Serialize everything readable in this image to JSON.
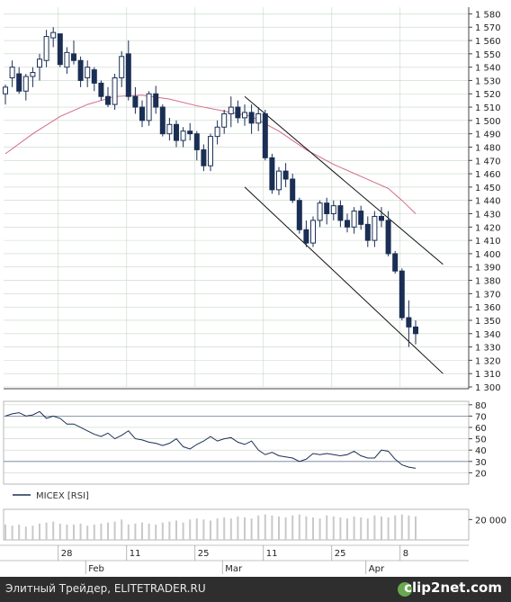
{
  "colors": {
    "candle": "#1b2f55",
    "ma": "#d46a8a",
    "grid": "#c5d6c5",
    "rsi": "#1b2f55",
    "volume": "#c9c9c9",
    "footer_bg": "#2e2e2e"
  },
  "footer": {
    "text": "Элитный Трейдер, ELITETRADER.RU",
    "brand": "clip2net.com"
  },
  "chart_data": [
    {
      "type": "candlestick",
      "title": "",
      "ylim": [
        1300,
        1585
      ],
      "y_ticks": [
        "1 580",
        "1 570",
        "1 560",
        "1 550",
        "1 540",
        "1 530",
        "1 520",
        "1 510",
        "1 500",
        "1 490",
        "1 480",
        "1 470",
        "1 460",
        "1 450",
        "1 440",
        "1 430",
        "1 420",
        "1 410",
        "1 400",
        "1 390",
        "1 380",
        "1 370",
        "1 360",
        "1 350",
        "1 340",
        "1 330",
        "1 320",
        "1 310",
        "1 300"
      ],
      "x_day_labels": [
        {
          "label": "28",
          "i": 8
        },
        {
          "label": "11",
          "i": 18
        },
        {
          "label": "25",
          "i": 28
        },
        {
          "label": "11",
          "i": 38
        },
        {
          "label": "25",
          "i": 48
        },
        {
          "label": "8",
          "i": 58
        }
      ],
      "x_month_labels": [
        {
          "label": "Feb",
          "i": 12
        },
        {
          "label": "Mar",
          "i": 32
        },
        {
          "label": "Apr",
          "i": 53
        }
      ],
      "ohlc": [
        [
          1520,
          1527,
          1512,
          1525
        ],
        [
          1532,
          1545,
          1525,
          1540
        ],
        [
          1535,
          1540,
          1520,
          1522
        ],
        [
          1522,
          1535,
          1515,
          1533
        ],
        [
          1533,
          1540,
          1525,
          1536
        ],
        [
          1540,
          1550,
          1530,
          1546
        ],
        [
          1545,
          1568,
          1540,
          1563
        ],
        [
          1562,
          1570,
          1555,
          1566
        ],
        [
          1565,
          1565,
          1540,
          1542
        ],
        [
          1540,
          1555,
          1535,
          1551
        ],
        [
          1550,
          1560,
          1542,
          1545
        ],
        [
          1545,
          1548,
          1525,
          1530
        ],
        [
          1532,
          1545,
          1525,
          1540
        ],
        [
          1538,
          1540,
          1522,
          1528
        ],
        [
          1528,
          1530,
          1515,
          1518
        ],
        [
          1518,
          1525,
          1510,
          1512
        ],
        [
          1512,
          1535,
          1508,
          1532
        ],
        [
          1532,
          1552,
          1525,
          1548
        ],
        [
          1550,
          1560,
          1515,
          1518
        ],
        [
          1518,
          1525,
          1505,
          1510
        ],
        [
          1510,
          1515,
          1495,
          1500
        ],
        [
          1500,
          1522,
          1496,
          1520
        ],
        [
          1520,
          1526,
          1505,
          1510
        ],
        [
          1510,
          1512,
          1488,
          1490
        ],
        [
          1490,
          1502,
          1485,
          1497
        ],
        [
          1497,
          1500,
          1480,
          1485
        ],
        [
          1485,
          1495,
          1480,
          1492
        ],
        [
          1492,
          1498,
          1485,
          1490
        ],
        [
          1490,
          1492,
          1470,
          1478
        ],
        [
          1478,
          1482,
          1462,
          1466
        ],
        [
          1466,
          1490,
          1462,
          1488
        ],
        [
          1488,
          1500,
          1482,
          1495
        ],
        [
          1495,
          1508,
          1490,
          1505
        ],
        [
          1505,
          1518,
          1495,
          1510
        ],
        [
          1510,
          1515,
          1498,
          1502
        ],
        [
          1502,
          1512,
          1496,
          1506
        ],
        [
          1506,
          1512,
          1490,
          1498
        ],
        [
          1498,
          1510,
          1492,
          1505
        ],
        [
          1505,
          1508,
          1470,
          1472
        ],
        [
          1472,
          1475,
          1445,
          1448
        ],
        [
          1448,
          1465,
          1444,
          1462
        ],
        [
          1462,
          1468,
          1450,
          1456
        ],
        [
          1456,
          1460,
          1438,
          1440
        ],
        [
          1440,
          1442,
          1415,
          1418
        ],
        [
          1418,
          1425,
          1405,
          1408
        ],
        [
          1408,
          1428,
          1405,
          1425
        ],
        [
          1425,
          1440,
          1420,
          1438
        ],
        [
          1438,
          1442,
          1422,
          1430
        ],
        [
          1430,
          1440,
          1425,
          1436
        ],
        [
          1436,
          1440,
          1420,
          1425
        ],
        [
          1425,
          1430,
          1416,
          1420
        ],
        [
          1420,
          1435,
          1415,
          1432
        ],
        [
          1432,
          1436,
          1418,
          1422
        ],
        [
          1422,
          1428,
          1405,
          1410
        ],
        [
          1410,
          1432,
          1405,
          1428
        ],
        [
          1428,
          1435,
          1420,
          1425
        ],
        [
          1425,
          1432,
          1398,
          1400
        ],
        [
          1400,
          1402,
          1385,
          1387
        ],
        [
          1387,
          1389,
          1350,
          1352
        ],
        [
          1352,
          1365,
          1330,
          1345
        ],
        [
          1345,
          1350,
          1332,
          1340
        ]
      ],
      "ma_series": [
        {
          "i": 0,
          "v": 1475
        },
        {
          "i": 4,
          "v": 1490
        },
        {
          "i": 8,
          "v": 1503
        },
        {
          "i": 12,
          "v": 1512
        },
        {
          "i": 16,
          "v": 1518
        },
        {
          "i": 20,
          "v": 1519
        },
        {
          "i": 24,
          "v": 1516
        },
        {
          "i": 28,
          "v": 1511
        },
        {
          "i": 32,
          "v": 1507
        },
        {
          "i": 36,
          "v": 1503
        },
        {
          "i": 40,
          "v": 1492
        },
        {
          "i": 44,
          "v": 1478
        },
        {
          "i": 48,
          "v": 1467
        },
        {
          "i": 52,
          "v": 1458
        },
        {
          "i": 56,
          "v": 1449
        },
        {
          "i": 58,
          "v": 1440
        },
        {
          "i": 60,
          "v": 1430
        }
      ],
      "trend_lines": [
        {
          "from": {
            "i": 35,
            "v": 1518
          },
          "to": {
            "i": 64,
            "v": 1392
          }
        },
        {
          "from": {
            "i": 35,
            "v": 1450
          },
          "to": {
            "i": 64,
            "v": 1310
          }
        }
      ]
    },
    {
      "type": "line",
      "series": [
        {
          "name": "MICEX [RSI]",
          "values": [
            70,
            72,
            73,
            70,
            71,
            74,
            68,
            70,
            68,
            63,
            63,
            60,
            57,
            54,
            52,
            55,
            50,
            53,
            57,
            50,
            49,
            47,
            46,
            44,
            46,
            50,
            43,
            41,
            45,
            48,
            52,
            48,
            50,
            51,
            47,
            45,
            48,
            40,
            36,
            38,
            35,
            34,
            33,
            30,
            32,
            37,
            36,
            37,
            36,
            35,
            36,
            39,
            35,
            33,
            33,
            40,
            39,
            32,
            27,
            25,
            24
          ]
        }
      ],
      "ylim": [
        10,
        83
      ],
      "y_ticks": [
        "80",
        "70",
        "60",
        "50",
        "40",
        "30",
        "20"
      ],
      "hlines": [
        30,
        70
      ]
    },
    {
      "type": "bar",
      "y_ticks": [
        "20 000"
      ],
      "ylim": [
        0,
        30000
      ],
      "values": [
        15000,
        14000,
        15000,
        13000,
        14000,
        16000,
        17000,
        18000,
        16000,
        15000,
        15000,
        16000,
        14000,
        15000,
        16000,
        17000,
        18000,
        20000,
        15000,
        16000,
        17000,
        16000,
        15000,
        17000,
        18000,
        19000,
        17000,
        20000,
        21000,
        20000,
        19000,
        21000,
        22000,
        21000,
        23000,
        22000,
        21000,
        24000,
        25000,
        24000,
        23000,
        22000,
        24000,
        25000,
        23000,
        22000,
        21000,
        24000,
        23000,
        22000,
        21000,
        23000,
        22000,
        21000,
        24000,
        23000,
        22000,
        24000,
        25000,
        24000,
        23000
      ]
    }
  ],
  "legend": {
    "label": "MICEX [RSI]"
  }
}
